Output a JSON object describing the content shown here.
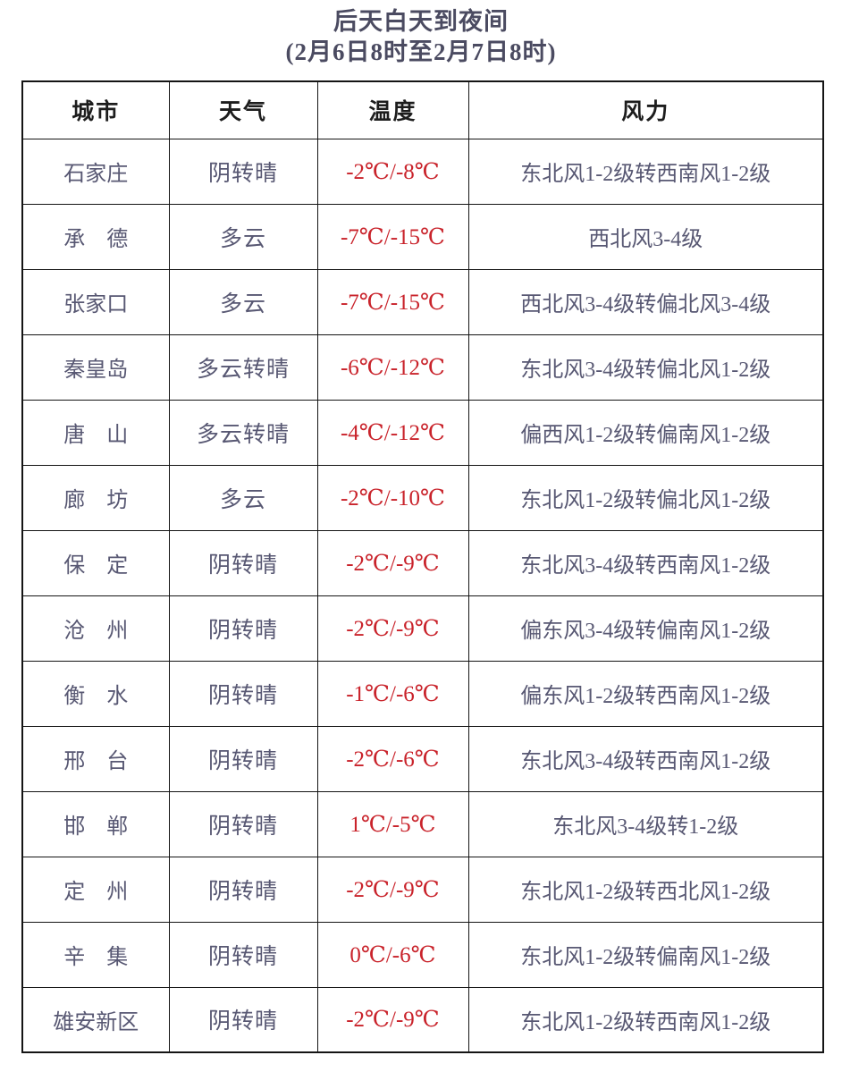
{
  "title": {
    "line1": "后天白天到夜间",
    "line2": "(2月6日8时至2月7日8时)"
  },
  "colors": {
    "temperature_red": "#c9232b",
    "body_text": "#585873",
    "header_text": "#1d1d1d",
    "title_text": "#4b4b61",
    "border": "#141414"
  },
  "table": {
    "headers": {
      "city": "城市",
      "weather": "天气",
      "temperature": "温度",
      "wind": "风力"
    },
    "rows": [
      {
        "city": "石家庄",
        "weather": "阴转晴",
        "temp": "-2℃/-8℃",
        "wind": "东北风1-2级转西南风1-2级"
      },
      {
        "city": "承　德",
        "weather": "多云",
        "temp": "-7℃/-15℃",
        "wind": "西北风3-4级"
      },
      {
        "city": "张家口",
        "weather": "多云",
        "temp": "-7℃/-15℃",
        "wind": "西北风3-4级转偏北风3-4级"
      },
      {
        "city": "秦皇岛",
        "weather": "多云转晴",
        "temp": "-6℃/-12℃",
        "wind": "东北风3-4级转偏北风1-2级"
      },
      {
        "city": "唐　山",
        "weather": "多云转晴",
        "temp": "-4℃/-12℃",
        "wind": "偏西风1-2级转偏南风1-2级"
      },
      {
        "city": "廊　坊",
        "weather": "多云",
        "temp": "-2℃/-10℃",
        "wind": "东北风1-2级转偏北风1-2级"
      },
      {
        "city": "保　定",
        "weather": "阴转晴",
        "temp": "-2℃/-9℃",
        "wind": "东北风3-4级转西南风1-2级"
      },
      {
        "city": "沧　州",
        "weather": "阴转晴",
        "temp": "-2℃/-9℃",
        "wind": "偏东风3-4级转偏南风1-2级"
      },
      {
        "city": "衡　水",
        "weather": "阴转晴",
        "temp": "-1℃/-6℃",
        "wind": "偏东风1-2级转西南风1-2级"
      },
      {
        "city": "邢　台",
        "weather": "阴转晴",
        "temp": "-2℃/-6℃",
        "wind": "东北风3-4级转西南风1-2级"
      },
      {
        "city": "邯　郸",
        "weather": "阴转晴",
        "temp": "1℃/-5℃",
        "wind": "东北风3-4级转1-2级"
      },
      {
        "city": "定　州",
        "weather": "阴转晴",
        "temp": "-2℃/-9℃",
        "wind": "东北风1-2级转西北风1-2级"
      },
      {
        "city": "辛　集",
        "weather": "阴转晴",
        "temp": "0℃/-6℃",
        "wind": "东北风1-2级转偏南风1-2级"
      },
      {
        "city": "雄安新区",
        "weather": "阴转晴",
        "temp": "-2℃/-9℃",
        "wind": "东北风1-2级转西南风1-2级"
      }
    ]
  }
}
